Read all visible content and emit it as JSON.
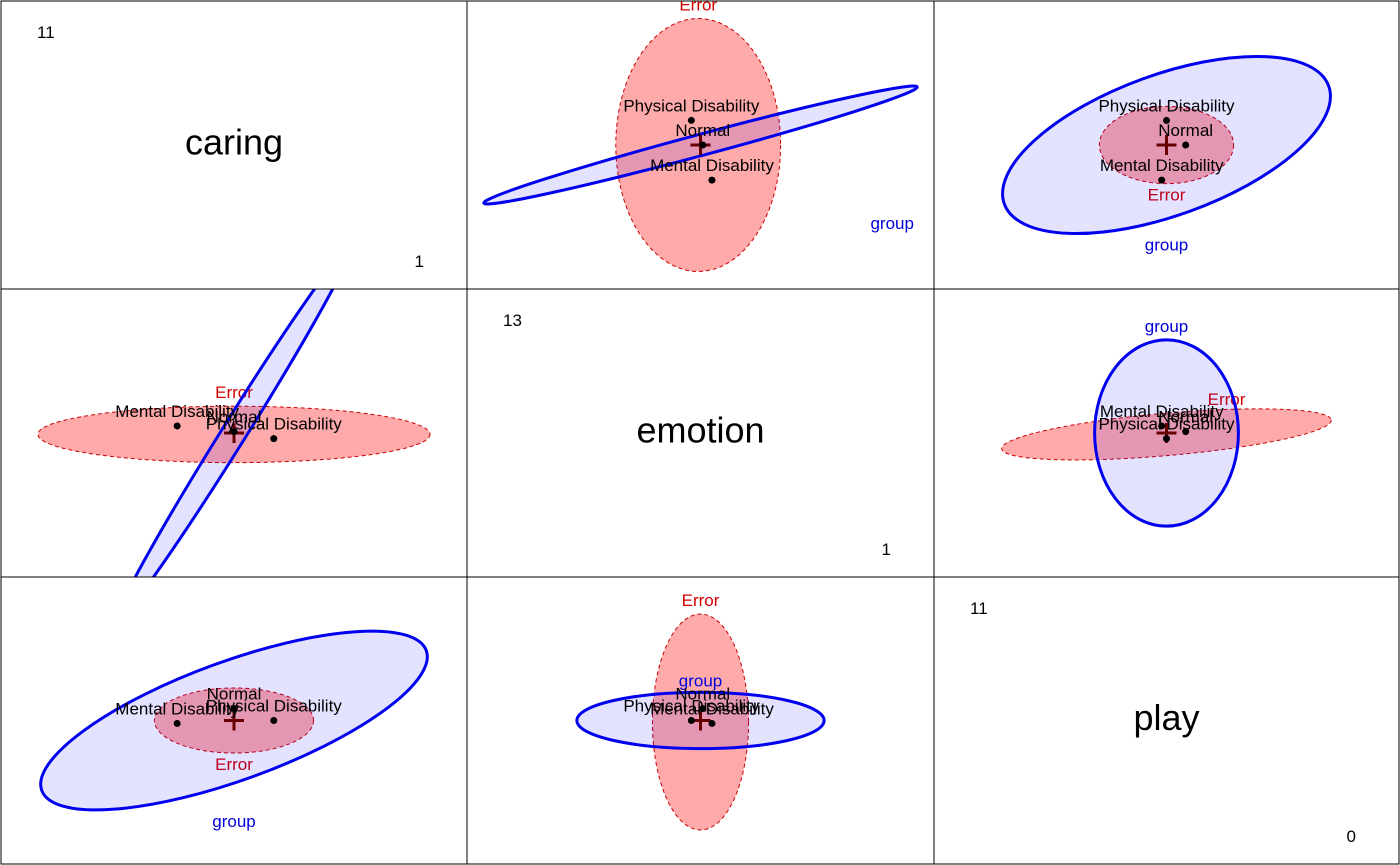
{
  "chart_data": {
    "type": "scatter",
    "variables": [
      "caring",
      "emotion",
      "play"
    ],
    "diagonal_limits": {
      "caring": {
        "min": "1",
        "max": "11"
      },
      "emotion": {
        "min": "1",
        "max": "13"
      },
      "play": {
        "min": "0",
        "max": "11"
      }
    },
    "group_means": [
      {
        "name": "Normal",
        "caring": 6.0,
        "emotion": 7.0,
        "play": 7.4
      },
      {
        "name": "Mental Disability",
        "caring": 4.0,
        "emotion": 7.4,
        "play": 6.4
      },
      {
        "name": "Physical Disability",
        "caring": 7.4,
        "emotion": 6.5,
        "play": 6.6
      }
    ],
    "grand_mean": {
      "caring": 6.0,
      "emotion": 6.9,
      "play": 6.6
    },
    "error_label": "Error",
    "group_label": "group",
    "colors": {
      "error": "#ff0000",
      "group": "#0000ee",
      "points": "#000000",
      "grand_mean": "#660000"
    }
  }
}
